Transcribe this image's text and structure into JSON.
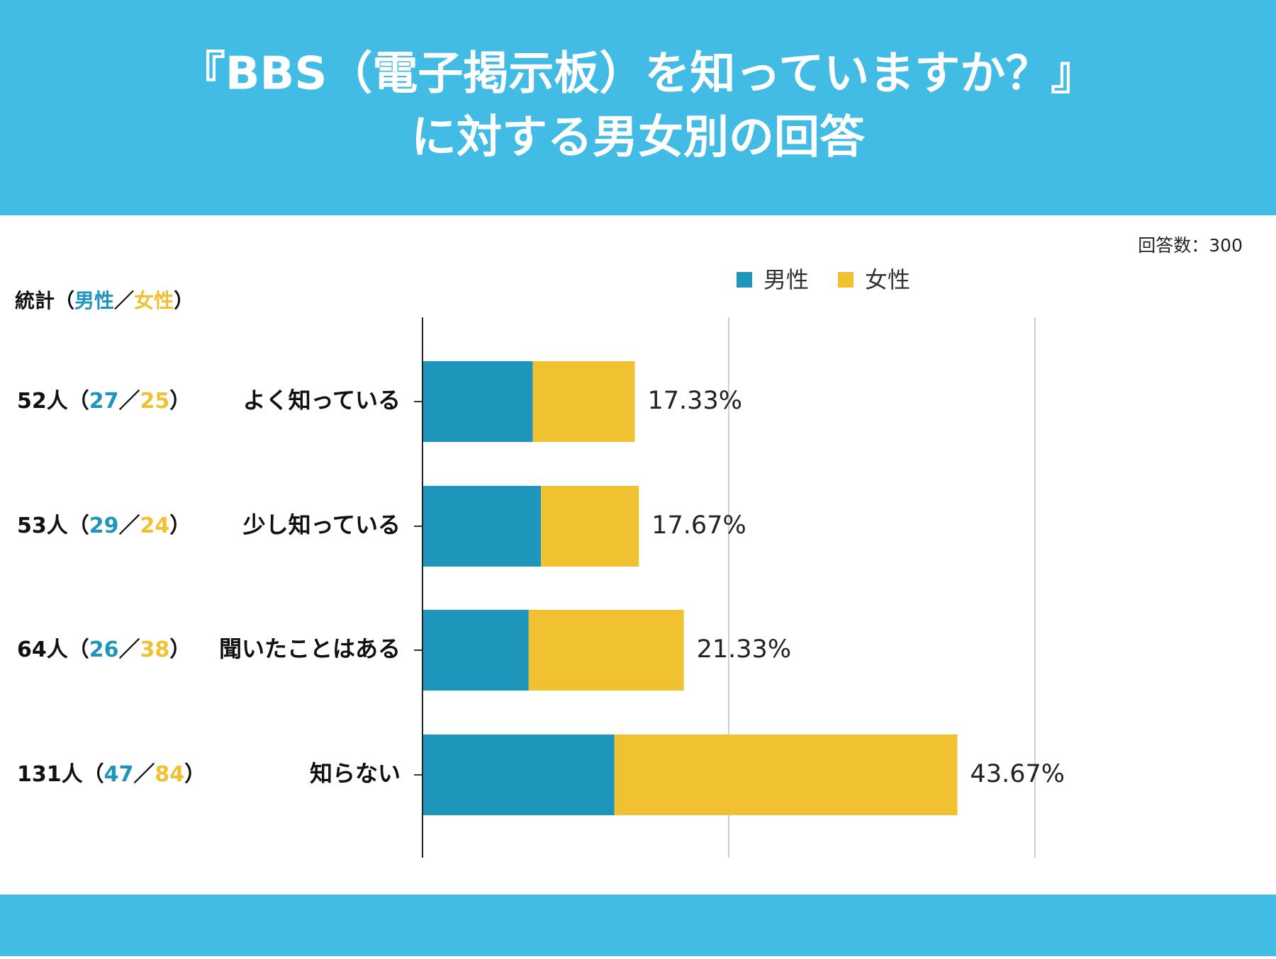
{
  "chart_data": {
    "type": "stacked_barh",
    "title_lines": [
      "『BBS（電子掲示板）を知っていますか？』",
      "に対する男女別の回答"
    ],
    "respondents": "回答数：300",
    "stats_heading": {
      "label": "統計",
      "open": "（",
      "male": "男性",
      "sep": "／",
      "female": "女性",
      "close": "）"
    },
    "categories": [
      "よく知っている",
      "少し知っている",
      "聞いたことはある",
      "知らない"
    ],
    "series": [
      {
        "name": "男性",
        "color": "#1e96bb",
        "values": [
          27,
          29,
          26,
          47
        ]
      },
      {
        "name": "女性",
        "color": "#f0c231",
        "values": [
          25,
          24,
          38,
          84
        ]
      }
    ],
    "total_labels": [
      "52人",
      "53人",
      "64人",
      "131人"
    ],
    "percent_labels": [
      "17.33%",
      "17.67%",
      "21.33%",
      "43.67%"
    ],
    "xlim": [
      0,
      150
    ],
    "xticks": [
      0,
      75,
      150
    ],
    "grid": true,
    "legend": "top"
  }
}
